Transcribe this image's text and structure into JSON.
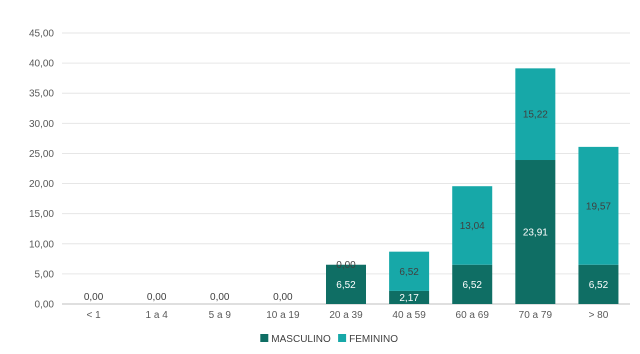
{
  "chart_data": {
    "type": "bar",
    "stacked": true,
    "title": "",
    "xlabel": "",
    "ylabel": "",
    "ylim": [
      0,
      45
    ],
    "y_ticks": [
      "0,00",
      "5,00",
      "10,00",
      "15,00",
      "20,00",
      "25,00",
      "30,00",
      "35,00",
      "40,00",
      "45,00"
    ],
    "y_tick_values": [
      0,
      5,
      10,
      15,
      20,
      25,
      30,
      35,
      40,
      45
    ],
    "grid": true,
    "legend_position": "bottom",
    "categories": [
      "< 1",
      "1 a 4",
      "5 a 9",
      "10 a 19",
      "20 a 39",
      "40 a 59",
      "60 a 69",
      "70 a 79",
      "> 80"
    ],
    "series": [
      {
        "name": "MASCULINO",
        "color": "#0f6e64",
        "values": [
          0,
          0,
          0,
          0,
          6.52,
          2.17,
          6.52,
          23.91,
          6.52
        ],
        "labels": [
          "0,00",
          "0,00",
          "0,00",
          "0,00",
          "6,52",
          "2,17",
          "6,52",
          "23,91",
          "6,52"
        ]
      },
      {
        "name": "FEMININO",
        "color": "#17a8a8",
        "values": [
          0,
          0,
          0,
          0,
          0,
          6.52,
          13.04,
          15.22,
          19.57
        ],
        "labels": [
          "",
          "",
          "",
          "",
          "0,00",
          "6,52",
          "13,04",
          "15,22",
          "19,57"
        ]
      }
    ]
  }
}
